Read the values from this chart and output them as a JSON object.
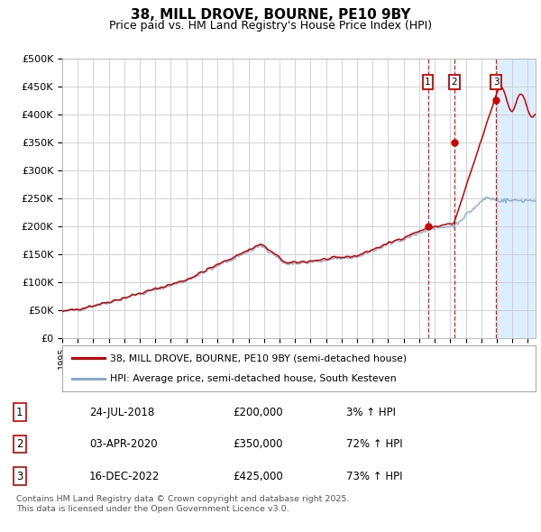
{
  "title": "38, MILL DROVE, BOURNE, PE10 9BY",
  "subtitle": "Price paid vs. HM Land Registry's House Price Index (HPI)",
  "ylim": [
    0,
    500000
  ],
  "yticks": [
    0,
    50000,
    100000,
    150000,
    200000,
    250000,
    300000,
    350000,
    400000,
    450000,
    500000
  ],
  "ytick_labels": [
    "£0",
    "£50K",
    "£100K",
    "£150K",
    "£200K",
    "£250K",
    "£300K",
    "£350K",
    "£400K",
    "£450K",
    "£500K"
  ],
  "xlim_start": 1995.0,
  "xlim_end": 2025.5,
  "legend_line1": "38, MILL DROVE, BOURNE, PE10 9BY (semi-detached house)",
  "legend_line2": "HPI: Average price, semi-detached house, South Kesteven",
  "line_color_red": "#cc0000",
  "line_color_blue": "#88aacc",
  "sale_marker_color": "#cc0000",
  "vline_color": "#cc0000",
  "highlight_color": "#ddeeff",
  "annotations": [
    {
      "num": 1,
      "date": "24-JUL-2018",
      "price": "£200,000",
      "pct": "3% ↑ HPI",
      "x_year": 2018.56,
      "y_val": 200000
    },
    {
      "num": 2,
      "date": "03-APR-2020",
      "price": "£350,000",
      "pct": "72% ↑ HPI",
      "x_year": 2020.25,
      "y_val": 350000
    },
    {
      "num": 3,
      "date": "16-DEC-2022",
      "price": "£425,000",
      "pct": "73% ↑ HPI",
      "x_year": 2022.96,
      "y_val": 425000
    }
  ],
  "footer_line1": "Contains HM Land Registry data © Crown copyright and database right 2025.",
  "footer_line2": "This data is licensed under the Open Government Licence v3.0.",
  "background_color": "#ffffff",
  "grid_color": "#cccccc"
}
